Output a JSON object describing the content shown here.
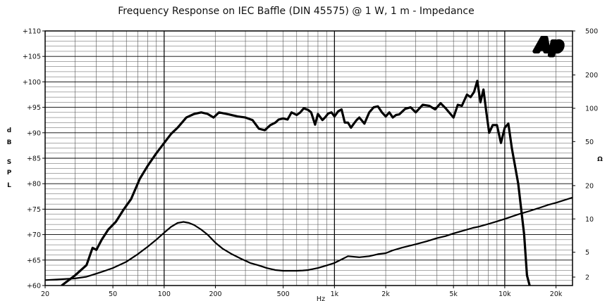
{
  "chart_data": {
    "type": "line",
    "title": "Frequency Response on IEC Baffle (DIN 45575) @ 1 W, 1 m - Impedance",
    "xlabel": "Hz",
    "ylabel_left": [
      "d",
      "B",
      "S",
      "P",
      "L"
    ],
    "ylabel_right": "Ω",
    "x_scale": "log",
    "xlim": [
      20,
      25000
    ],
    "ylim_left": [
      60,
      110
    ],
    "ylim_right_log": [
      2.5,
      500
    ],
    "x_ticks": [
      {
        "v": 20,
        "label": "20"
      },
      {
        "v": 50,
        "label": "50"
      },
      {
        "v": 100,
        "label": "100"
      },
      {
        "v": 200,
        "label": "200"
      },
      {
        "v": 500,
        "label": "500"
      },
      {
        "v": 1000,
        "label": "1k"
      },
      {
        "v": 2000,
        "label": "2k"
      },
      {
        "v": 5000,
        "label": "5k"
      },
      {
        "v": 10000,
        "label": "10k"
      },
      {
        "v": 20000,
        "label": "20k"
      }
    ],
    "y_left_ticks": [
      {
        "v": 110,
        "label": "+110"
      },
      {
        "v": 105,
        "label": "+105"
      },
      {
        "v": 100,
        "label": "+100"
      },
      {
        "v": 95,
        "label": "+95"
      },
      {
        "v": 90,
        "label": "+90"
      },
      {
        "v": 85,
        "label": "+85"
      },
      {
        "v": 80,
        "label": "+80"
      },
      {
        "v": 75,
        "label": "+75"
      },
      {
        "v": 70,
        "label": "+70"
      },
      {
        "v": 65,
        "label": "+65"
      },
      {
        "v": 60,
        "label": "+60"
      }
    ],
    "y_right_ticks": [
      {
        "v": 500,
        "label": "500"
      },
      {
        "v": 200,
        "label": "200"
      },
      {
        "v": 100,
        "label": "100"
      },
      {
        "v": 50,
        "label": "50"
      },
      {
        "v": 20,
        "label": "20"
      },
      {
        "v": 10,
        "label": "10"
      },
      {
        "v": 5,
        "label": "5"
      },
      {
        "v": 2,
        "label": "2"
      }
    ],
    "grid": true,
    "logo": "Ap",
    "series": [
      {
        "axis": "left",
        "x": [
          25,
          30,
          35,
          38,
          40,
          43,
          47,
          52,
          58,
          64,
          72,
          80,
          90,
          100,
          110,
          120,
          135,
          150,
          165,
          180,
          195,
          210,
          240,
          270,
          300,
          330,
          360,
          390,
          420,
          450,
          470,
          500,
          530,
          560,
          600,
          630,
          660,
          700,
          730,
          770,
          800,
          850,
          880,
          920,
          960,
          1000,
          1050,
          1100,
          1150,
          1200,
          1250,
          1300,
          1350,
          1400,
          1500,
          1600,
          1700,
          1800,
          1900,
          2000,
          2100,
          2200,
          2300,
          2400,
          2600,
          2800,
          3000,
          3300,
          3600,
          3900,
          4200,
          4500,
          5000,
          5300,
          5600,
          6000,
          6300,
          6600,
          6900,
          7200,
          7500,
          7800,
          8100,
          8500,
          9000,
          9500,
          10000,
          10500,
          11000,
          12000,
          13000,
          13500,
          14000
        ],
        "y": [
          60,
          62,
          64,
          67.4,
          67,
          69,
          71,
          72.5,
          75,
          77,
          81,
          83.5,
          86,
          88,
          89.8,
          91,
          93,
          93.7,
          94,
          93.7,
          93,
          94,
          93.6,
          93.2,
          93,
          92.5,
          90.8,
          90.5,
          91.5,
          92,
          92.6,
          92.8,
          92.6,
          94,
          93.5,
          94,
          94.8,
          94.5,
          94,
          91.6,
          93.7,
          92.5,
          93,
          93.8,
          94,
          93.2,
          94.2,
          94.6,
          92,
          92,
          91,
          91.8,
          92.5,
          93,
          91.8,
          94,
          95,
          95.2,
          94,
          93.2,
          94,
          93,
          93.5,
          93.6,
          94.7,
          95,
          94,
          95.5,
          95.3,
          94.6,
          95.8,
          94.8,
          93,
          95.5,
          95.3,
          97.5,
          97,
          98,
          100.2,
          96,
          98.5,
          94,
          90,
          91.5,
          91.5,
          88,
          91,
          91.8,
          87,
          80,
          70,
          62,
          60
        ]
      },
      {
        "axis": "right",
        "x": [
          20,
          25,
          30,
          35,
          40,
          45,
          50,
          60,
          70,
          80,
          90,
          100,
          110,
          120,
          130,
          140,
          150,
          165,
          180,
          200,
          220,
          250,
          280,
          320,
          360,
          400,
          450,
          500,
          550,
          600,
          650,
          700,
          800,
          900,
          1000,
          1100,
          1200,
          1400,
          1600,
          1800,
          2000,
          2200,
          2500,
          3000,
          3500,
          4000,
          4500,
          5000,
          5500,
          6000,
          6500,
          7000,
          8000,
          9000,
          10000,
          12000,
          14000,
          16000,
          18000,
          20000,
          25000
        ],
        "y": [
          2.8,
          2.85,
          2.9,
          3.0,
          3.2,
          3.4,
          3.6,
          4.1,
          4.8,
          5.6,
          6.5,
          7.5,
          8.5,
          9.2,
          9.4,
          9.2,
          8.8,
          8.0,
          7.2,
          6.1,
          5.4,
          4.8,
          4.4,
          4.0,
          3.8,
          3.6,
          3.45,
          3.4,
          3.4,
          3.4,
          3.42,
          3.45,
          3.6,
          3.8,
          4.0,
          4.3,
          4.6,
          4.5,
          4.6,
          4.8,
          4.9,
          5.2,
          5.5,
          5.9,
          6.3,
          6.7,
          7.0,
          7.4,
          7.7,
          8.0,
          8.3,
          8.5,
          9.0,
          9.5,
          10.0,
          11.0,
          11.8,
          12.6,
          13.4,
          14.0,
          15.6
        ]
      }
    ]
  }
}
